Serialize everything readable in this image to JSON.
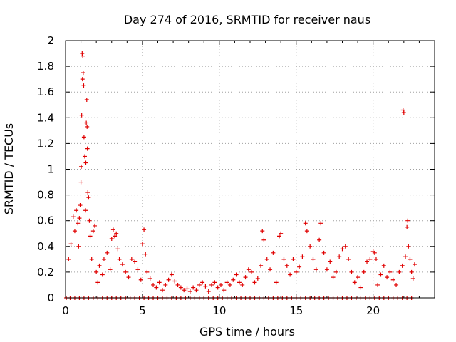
{
  "chart_data": {
    "type": "scatter",
    "title": "Day 274 of 2016, SRMTID for receiver naus",
    "xlabel": "GPS time / hours",
    "ylabel": "SRMTID / TECUs",
    "xlim": [
      0,
      24
    ],
    "ylim": [
      0,
      2
    ],
    "x_ticks": [
      0,
      5,
      10,
      15,
      20
    ],
    "x_tick_labels": [
      "0",
      "5",
      "10",
      "15",
      "20"
    ],
    "y_ticks": [
      0,
      0.2,
      0.4,
      0.6,
      0.8,
      1,
      1.2,
      1.4,
      1.6,
      1.8,
      2
    ],
    "y_tick_labels": [
      "0",
      "0.2",
      "0.4",
      "0.6",
      "0.8",
      "1",
      "1.2",
      "1.4",
      "1.6",
      "1.8",
      "2"
    ],
    "grid": true,
    "marker": "+",
    "color": "#e00000",
    "series": [
      {
        "name": "SRMTID",
        "points": [
          [
            0.05,
            0
          ],
          [
            0.3,
            0
          ],
          [
            0.6,
            0
          ],
          [
            0.9,
            0
          ],
          [
            1.2,
            0
          ],
          [
            1.5,
            0
          ],
          [
            1.8,
            0
          ],
          [
            2.1,
            0
          ],
          [
            2.4,
            0
          ],
          [
            2.7,
            0
          ],
          [
            3.0,
            0
          ],
          [
            3.3,
            0
          ],
          [
            3.6,
            0
          ],
          [
            3.9,
            0
          ],
          [
            4.2,
            0
          ],
          [
            4.5,
            0
          ],
          [
            4.8,
            0
          ],
          [
            5.1,
            0
          ],
          [
            5.4,
            0
          ],
          [
            5.7,
            0
          ],
          [
            6.0,
            0
          ],
          [
            6.3,
            0
          ],
          [
            6.6,
            0
          ],
          [
            6.9,
            0
          ],
          [
            7.2,
            0
          ],
          [
            7.5,
            0
          ],
          [
            7.8,
            0
          ],
          [
            8.1,
            0
          ],
          [
            8.4,
            0
          ],
          [
            8.7,
            0
          ],
          [
            9.0,
            0
          ],
          [
            9.3,
            0
          ],
          [
            9.6,
            0
          ],
          [
            9.9,
            0
          ],
          [
            10.2,
            0
          ],
          [
            10.5,
            0
          ],
          [
            10.8,
            0
          ],
          [
            11.1,
            0
          ],
          [
            11.4,
            0
          ],
          [
            11.7,
            0
          ],
          [
            12.0,
            0
          ],
          [
            12.3,
            0
          ],
          [
            12.6,
            0
          ],
          [
            12.9,
            0
          ],
          [
            13.2,
            0
          ],
          [
            13.5,
            0
          ],
          [
            13.8,
            0
          ],
          [
            14.1,
            0
          ],
          [
            14.4,
            0
          ],
          [
            14.7,
            0
          ],
          [
            15.0,
            0
          ],
          [
            15.3,
            0
          ],
          [
            15.6,
            0
          ],
          [
            15.9,
            0
          ],
          [
            16.2,
            0
          ],
          [
            16.5,
            0
          ],
          [
            16.8,
            0
          ],
          [
            17.1,
            0
          ],
          [
            17.4,
            0
          ],
          [
            17.7,
            0
          ],
          [
            18.0,
            0
          ],
          [
            18.3,
            0
          ],
          [
            18.6,
            0
          ],
          [
            18.9,
            0
          ],
          [
            19.2,
            0
          ],
          [
            19.5,
            0
          ],
          [
            19.8,
            0
          ],
          [
            20.1,
            0
          ],
          [
            20.4,
            0
          ],
          [
            20.7,
            0
          ],
          [
            21.0,
            0
          ],
          [
            21.3,
            0
          ],
          [
            21.6,
            0
          ],
          [
            21.9,
            0
          ],
          [
            22.2,
            0
          ],
          [
            22.5,
            0
          ],
          [
            0.2,
            0.3
          ],
          [
            0.35,
            0.42
          ],
          [
            0.5,
            0.63
          ],
          [
            0.6,
            0.52
          ],
          [
            0.7,
            0.68
          ],
          [
            0.8,
            0.58
          ],
          [
            0.85,
            0.4
          ],
          [
            0.9,
            0.62
          ],
          [
            0.95,
            0.72
          ],
          [
            1.0,
            0.9
          ],
          [
            1.02,
            1.02
          ],
          [
            1.05,
            1.42
          ],
          [
            1.08,
            1.9
          ],
          [
            1.1,
            1.7
          ],
          [
            1.12,
            1.88
          ],
          [
            1.15,
            1.75
          ],
          [
            1.18,
            1.65
          ],
          [
            1.2,
            1.25
          ],
          [
            1.25,
            1.1
          ],
          [
            1.3,
            0.68
          ],
          [
            1.32,
            1.05
          ],
          [
            1.35,
            1.36
          ],
          [
            1.38,
            1.54
          ],
          [
            1.4,
            1.33
          ],
          [
            1.42,
            1.16
          ],
          [
            1.45,
            0.82
          ],
          [
            1.5,
            0.78
          ],
          [
            1.55,
            0.6
          ],
          [
            1.6,
            0.48
          ],
          [
            1.7,
            0.3
          ],
          [
            1.8,
            0.52
          ],
          [
            1.9,
            0.56
          ],
          [
            2.0,
            0.2
          ],
          [
            2.1,
            0.12
          ],
          [
            2.2,
            0.25
          ],
          [
            2.4,
            0.18
          ],
          [
            2.5,
            0.3
          ],
          [
            2.7,
            0.35
          ],
          [
            2.9,
            0.22
          ],
          [
            3.0,
            0.46
          ],
          [
            3.1,
            0.53
          ],
          [
            3.2,
            0.48
          ],
          [
            3.3,
            0.5
          ],
          [
            3.4,
            0.38
          ],
          [
            3.5,
            0.3
          ],
          [
            3.7,
            0.26
          ],
          [
            3.9,
            0.2
          ],
          [
            4.1,
            0.16
          ],
          [
            4.3,
            0.3
          ],
          [
            4.5,
            0.28
          ],
          [
            4.7,
            0.22
          ],
          [
            4.9,
            0.14
          ],
          [
            5.0,
            0.42
          ],
          [
            5.1,
            0.53
          ],
          [
            5.2,
            0.34
          ],
          [
            5.3,
            0.2
          ],
          [
            5.5,
            0.15
          ],
          [
            5.7,
            0.1
          ],
          [
            5.9,
            0.08
          ],
          [
            6.1,
            0.12
          ],
          [
            6.3,
            0.06
          ],
          [
            6.5,
            0.1
          ],
          [
            6.7,
            0.14
          ],
          [
            6.9,
            0.18
          ],
          [
            7.1,
            0.13
          ],
          [
            7.3,
            0.1
          ],
          [
            7.5,
            0.08
          ],
          [
            7.7,
            0.06
          ],
          [
            7.9,
            0.07
          ],
          [
            8.1,
            0.05
          ],
          [
            8.3,
            0.08
          ],
          [
            8.5,
            0.06
          ],
          [
            8.7,
            0.1
          ],
          [
            8.9,
            0.12
          ],
          [
            9.1,
            0.09
          ],
          [
            9.3,
            0.05
          ],
          [
            9.5,
            0.1
          ],
          [
            9.7,
            0.12
          ],
          [
            9.9,
            0.08
          ],
          [
            10.1,
            0.1
          ],
          [
            10.3,
            0.06
          ],
          [
            10.5,
            0.12
          ],
          [
            10.7,
            0.1
          ],
          [
            10.9,
            0.14
          ],
          [
            11.1,
            0.18
          ],
          [
            11.3,
            0.12
          ],
          [
            11.5,
            0.1
          ],
          [
            11.7,
            0.16
          ],
          [
            11.9,
            0.22
          ],
          [
            12.1,
            0.2
          ],
          [
            12.3,
            0.12
          ],
          [
            12.5,
            0.15
          ],
          [
            12.7,
            0.25
          ],
          [
            12.8,
            0.52
          ],
          [
            12.9,
            0.45
          ],
          [
            13.1,
            0.3
          ],
          [
            13.3,
            0.22
          ],
          [
            13.5,
            0.35
          ],
          [
            13.7,
            0.12
          ],
          [
            13.9,
            0.48
          ],
          [
            14.0,
            0.5
          ],
          [
            14.2,
            0.3
          ],
          [
            14.4,
            0.25
          ],
          [
            14.6,
            0.18
          ],
          [
            14.8,
            0.3
          ],
          [
            15.0,
            0.2
          ],
          [
            15.2,
            0.24
          ],
          [
            15.4,
            0.32
          ],
          [
            15.6,
            0.58
          ],
          [
            15.7,
            0.52
          ],
          [
            15.9,
            0.4
          ],
          [
            16.1,
            0.3
          ],
          [
            16.3,
            0.22
          ],
          [
            16.5,
            0.45
          ],
          [
            16.6,
            0.58
          ],
          [
            16.8,
            0.35
          ],
          [
            17.0,
            0.22
          ],
          [
            17.2,
            0.28
          ],
          [
            17.4,
            0.16
          ],
          [
            17.6,
            0.2
          ],
          [
            17.8,
            0.32
          ],
          [
            18.0,
            0.38
          ],
          [
            18.2,
            0.4
          ],
          [
            18.4,
            0.3
          ],
          [
            18.6,
            0.2
          ],
          [
            18.8,
            0.12
          ],
          [
            19.0,
            0.16
          ],
          [
            19.2,
            0.08
          ],
          [
            19.4,
            0.2
          ],
          [
            19.6,
            0.28
          ],
          [
            19.8,
            0.3
          ],
          [
            20.0,
            0.36
          ],
          [
            20.1,
            0.35
          ],
          [
            20.2,
            0.3
          ],
          [
            20.3,
            0.1
          ],
          [
            20.5,
            0.18
          ],
          [
            20.7,
            0.25
          ],
          [
            20.9,
            0.16
          ],
          [
            21.1,
            0.2
          ],
          [
            21.3,
            0.14
          ],
          [
            21.5,
            0.1
          ],
          [
            21.7,
            0.2
          ],
          [
            21.9,
            0.25
          ],
          [
            21.95,
            1.46
          ],
          [
            22.0,
            1.44
          ],
          [
            22.1,
            0.32
          ],
          [
            22.2,
            0.55
          ],
          [
            22.25,
            0.6
          ],
          [
            22.3,
            0.4
          ],
          [
            22.4,
            0.3
          ],
          [
            22.5,
            0.2
          ],
          [
            22.6,
            0.15
          ],
          [
            22.7,
            0.26
          ]
        ]
      }
    ]
  }
}
